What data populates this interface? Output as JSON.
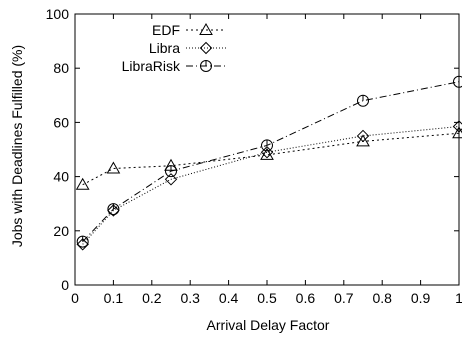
{
  "chart_data": {
    "type": "line",
    "title": "",
    "xlabel": "Arrival Delay Factor",
    "ylabel": "Jobs with Deadlines Fulfilled (%)",
    "xlim": [
      0,
      1
    ],
    "ylim": [
      0,
      100
    ],
    "xticks": [
      0,
      0.1,
      0.2,
      0.3,
      0.4,
      0.5,
      0.6,
      0.7,
      0.8,
      0.9,
      1
    ],
    "xtick_labels": [
      "0",
      "0.1",
      "0.2",
      "0.3",
      "0.4",
      "0.5",
      "0.6",
      "0.7",
      "0.8",
      "0.9",
      "1"
    ],
    "yticks": [
      0,
      20,
      40,
      60,
      80,
      100
    ],
    "ytick_labels": [
      "0",
      "20",
      "40",
      "60",
      "80",
      "100"
    ],
    "grid": false,
    "legend_position": "top-left",
    "x": [
      0.02,
      0.1,
      0.25,
      0.5,
      0.75,
      1.0
    ],
    "series": [
      {
        "name": "EDF",
        "marker": "triangle",
        "dash": "dotted-short",
        "values": [
          37,
          43,
          44,
          48,
          53,
          56
        ]
      },
      {
        "name": "Libra",
        "marker": "diamond",
        "dash": "dotted",
        "values": [
          15,
          27.5,
          39,
          49,
          55,
          58.5
        ]
      },
      {
        "name": "LibraRisk",
        "marker": "circle",
        "dash": "dash-dot",
        "values": [
          16,
          28,
          42,
          51.5,
          68,
          75
        ]
      }
    ],
    "colors": {
      "line": "#000000",
      "axis": "#000000",
      "background": "#ffffff"
    }
  }
}
